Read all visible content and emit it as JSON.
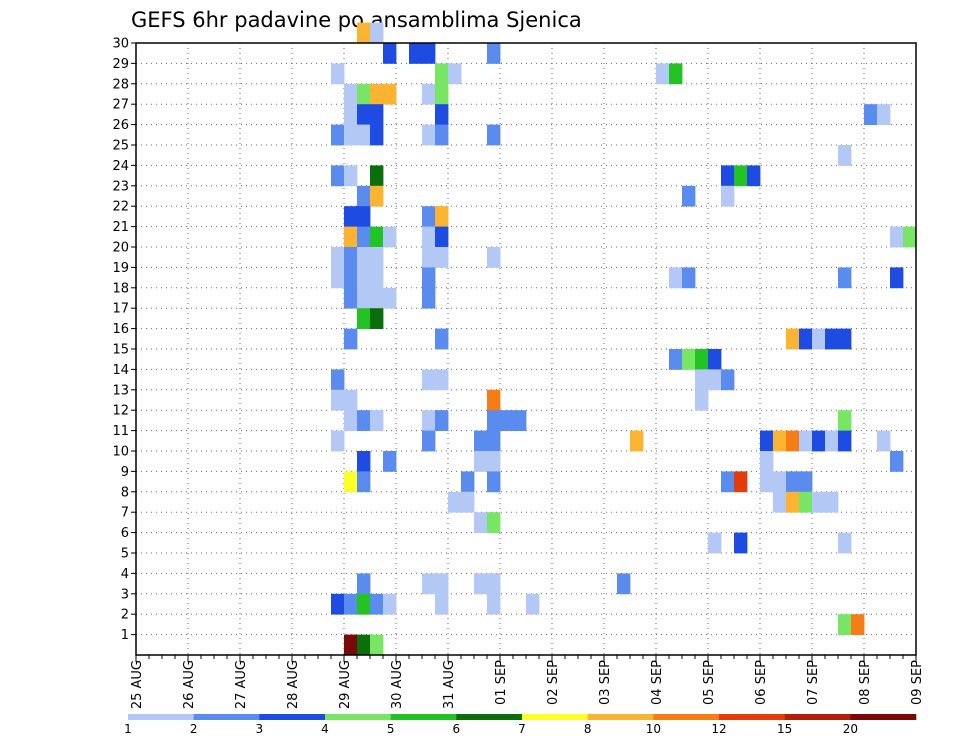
{
  "chart_data": {
    "type": "heatmap",
    "title": "GEFS 6hr padavine po ansamblima Sjenica",
    "x_labels": [
      "25 AUG",
      "26 AUG",
      "27 AUG",
      "28 AUG",
      "29 AUG",
      "30 AUG",
      "31 AUG",
      "01 SEP",
      "02 SEP",
      "03 SEP",
      "04 SEP",
      "05 SEP",
      "06 SEP",
      "07 SEP",
      "08 SEP",
      "09 SEP"
    ],
    "y_labels": [
      "1",
      "2",
      "3",
      "4",
      "5",
      "6",
      "7",
      "8",
      "9",
      "10",
      "11",
      "12",
      "13",
      "14",
      "15",
      "16",
      "17",
      "18",
      "19",
      "20",
      "21",
      "22",
      "23",
      "24",
      "25",
      "26",
      "27",
      "28",
      "29",
      "30"
    ],
    "x_step_hours": 6,
    "ylim": [
      0,
      30
    ],
    "grid": true,
    "colorbar": {
      "labels": [
        "1",
        "2",
        "3",
        "4",
        "5",
        "6",
        "7",
        "8",
        "10",
        "12",
        "15",
        "20"
      ],
      "colors": [
        "#b4c8f5",
        "#5a8cf0",
        "#1e4be1",
        "#78e664",
        "#23c323",
        "#0a6e0a",
        "#ffff28",
        "#fab432",
        "#f57d14",
        "#e13c0a",
        "#b41e0a",
        "#780a0a"
      ]
    },
    "cells": [
      {
        "t": 17,
        "m": 30,
        "c": 7
      },
      {
        "t": 18,
        "m": 30,
        "c": 0
      },
      {
        "t": 19,
        "m": 29,
        "c": 2
      },
      {
        "t": 21,
        "m": 29,
        "c": 2
      },
      {
        "t": 22,
        "m": 29,
        "c": 2
      },
      {
        "t": 27,
        "m": 29,
        "c": 1
      },
      {
        "t": 15,
        "m": 28,
        "c": 0
      },
      {
        "t": 23,
        "m": 28,
        "c": 3
      },
      {
        "t": 24,
        "m": 28,
        "c": 0
      },
      {
        "t": 40,
        "m": 28,
        "c": 0
      },
      {
        "t": 41,
        "m": 28,
        "c": 4
      },
      {
        "t": 16,
        "m": 27,
        "c": 0
      },
      {
        "t": 17,
        "m": 27,
        "c": 3
      },
      {
        "t": 18,
        "m": 27,
        "c": 7
      },
      {
        "t": 19,
        "m": 27,
        "c": 7
      },
      {
        "t": 22,
        "m": 27,
        "c": 0
      },
      {
        "t": 23,
        "m": 27,
        "c": 3
      },
      {
        "t": 16,
        "m": 26,
        "c": 0
      },
      {
        "t": 17,
        "m": 26,
        "c": 2
      },
      {
        "t": 18,
        "m": 26,
        "c": 2
      },
      {
        "t": 23,
        "m": 26,
        "c": 2
      },
      {
        "t": 56,
        "m": 26,
        "c": 1
      },
      {
        "t": 57,
        "m": 26,
        "c": 0
      },
      {
        "t": 15,
        "m": 25,
        "c": 1
      },
      {
        "t": 16,
        "m": 25,
        "c": 0
      },
      {
        "t": 17,
        "m": 25,
        "c": 0
      },
      {
        "t": 18,
        "m": 25,
        "c": 2
      },
      {
        "t": 22,
        "m": 25,
        "c": 0
      },
      {
        "t": 23,
        "m": 25,
        "c": 1
      },
      {
        "t": 27,
        "m": 25,
        "c": 1
      },
      {
        "t": 54,
        "m": 24,
        "c": 0
      },
      {
        "t": 15,
        "m": 23,
        "c": 1
      },
      {
        "t": 16,
        "m": 23,
        "c": 0
      },
      {
        "t": 18,
        "m": 23,
        "c": 5
      },
      {
        "t": 45,
        "m": 23,
        "c": 2
      },
      {
        "t": 46,
        "m": 23,
        "c": 4
      },
      {
        "t": 47,
        "m": 23,
        "c": 2
      },
      {
        "t": 17,
        "m": 22,
        "c": 1
      },
      {
        "t": 18,
        "m": 22,
        "c": 7
      },
      {
        "t": 42,
        "m": 22,
        "c": 1
      },
      {
        "t": 45,
        "m": 22,
        "c": 0
      },
      {
        "t": 16,
        "m": 21,
        "c": 2
      },
      {
        "t": 17,
        "m": 21,
        "c": 2
      },
      {
        "t": 22,
        "m": 21,
        "c": 1
      },
      {
        "t": 23,
        "m": 21,
        "c": 7
      },
      {
        "t": 16,
        "m": 20,
        "c": 7
      },
      {
        "t": 17,
        "m": 20,
        "c": 1
      },
      {
        "t": 18,
        "m": 20,
        "c": 4
      },
      {
        "t": 19,
        "m": 20,
        "c": 0
      },
      {
        "t": 22,
        "m": 20,
        "c": 0
      },
      {
        "t": 23,
        "m": 20,
        "c": 2
      },
      {
        "t": 58,
        "m": 20,
        "c": 0
      },
      {
        "t": 59,
        "m": 20,
        "c": 3
      },
      {
        "t": 15,
        "m": 19,
        "c": 0
      },
      {
        "t": 16,
        "m": 19,
        "c": 1
      },
      {
        "t": 17,
        "m": 19,
        "c": 0
      },
      {
        "t": 18,
        "m": 19,
        "c": 0
      },
      {
        "t": 22,
        "m": 19,
        "c": 0
      },
      {
        "t": 23,
        "m": 19,
        "c": 0
      },
      {
        "t": 27,
        "m": 19,
        "c": 0
      },
      {
        "t": 15,
        "m": 18,
        "c": 0
      },
      {
        "t": 16,
        "m": 18,
        "c": 1
      },
      {
        "t": 17,
        "m": 18,
        "c": 0
      },
      {
        "t": 18,
        "m": 18,
        "c": 0
      },
      {
        "t": 22,
        "m": 18,
        "c": 1
      },
      {
        "t": 41,
        "m": 18,
        "c": 0
      },
      {
        "t": 42,
        "m": 18,
        "c": 1
      },
      {
        "t": 54,
        "m": 18,
        "c": 1
      },
      {
        "t": 58,
        "m": 18,
        "c": 2
      },
      {
        "t": 16,
        "m": 17,
        "c": 1
      },
      {
        "t": 17,
        "m": 17,
        "c": 0
      },
      {
        "t": 18,
        "m": 17,
        "c": 0
      },
      {
        "t": 19,
        "m": 17,
        "c": 0
      },
      {
        "t": 22,
        "m": 17,
        "c": 1
      },
      {
        "t": 17,
        "m": 16,
        "c": 4
      },
      {
        "t": 18,
        "m": 16,
        "c": 5
      },
      {
        "t": 16,
        "m": 15,
        "c": 1
      },
      {
        "t": 23,
        "m": 15,
        "c": 1
      },
      {
        "t": 50,
        "m": 15,
        "c": 7
      },
      {
        "t": 51,
        "m": 15,
        "c": 2
      },
      {
        "t": 52,
        "m": 15,
        "c": 0
      },
      {
        "t": 53,
        "m": 15,
        "c": 2
      },
      {
        "t": 54,
        "m": 15,
        "c": 2
      },
      {
        "t": 41,
        "m": 14,
        "c": 1
      },
      {
        "t": 42,
        "m": 14,
        "c": 3
      },
      {
        "t": 43,
        "m": 14,
        "c": 4
      },
      {
        "t": 44,
        "m": 14,
        "c": 2
      },
      {
        "t": 15,
        "m": 13,
        "c": 1
      },
      {
        "t": 22,
        "m": 13,
        "c": 0
      },
      {
        "t": 23,
        "m": 13,
        "c": 0
      },
      {
        "t": 43,
        "m": 13,
        "c": 0
      },
      {
        "t": 44,
        "m": 13,
        "c": 0
      },
      {
        "t": 45,
        "m": 13,
        "c": 1
      },
      {
        "t": 15,
        "m": 12,
        "c": 0
      },
      {
        "t": 16,
        "m": 12,
        "c": 0
      },
      {
        "t": 27,
        "m": 12,
        "c": 8
      },
      {
        "t": 43,
        "m": 12,
        "c": 0
      },
      {
        "t": 16,
        "m": 11,
        "c": 0
      },
      {
        "t": 17,
        "m": 11,
        "c": 1
      },
      {
        "t": 18,
        "m": 11,
        "c": 0
      },
      {
        "t": 22,
        "m": 11,
        "c": 0
      },
      {
        "t": 23,
        "m": 11,
        "c": 1
      },
      {
        "t": 27,
        "m": 11,
        "c": 1
      },
      {
        "t": 28,
        "m": 11,
        "c": 1
      },
      {
        "t": 29,
        "m": 11,
        "c": 1
      },
      {
        "t": 54,
        "m": 11,
        "c": 3
      },
      {
        "t": 15,
        "m": 10,
        "c": 0
      },
      {
        "t": 22,
        "m": 10,
        "c": 1
      },
      {
        "t": 26,
        "m": 10,
        "c": 1
      },
      {
        "t": 27,
        "m": 10,
        "c": 1
      },
      {
        "t": 38,
        "m": 10,
        "c": 7
      },
      {
        "t": 48,
        "m": 10,
        "c": 2
      },
      {
        "t": 49,
        "m": 10,
        "c": 7
      },
      {
        "t": 50,
        "m": 10,
        "c": 8
      },
      {
        "t": 51,
        "m": 10,
        "c": 0
      },
      {
        "t": 52,
        "m": 10,
        "c": 2
      },
      {
        "t": 53,
        "m": 10,
        "c": 0
      },
      {
        "t": 54,
        "m": 10,
        "c": 2
      },
      {
        "t": 57,
        "m": 10,
        "c": 0
      },
      {
        "t": 17,
        "m": 9,
        "c": 2
      },
      {
        "t": 19,
        "m": 9,
        "c": 1
      },
      {
        "t": 26,
        "m": 9,
        "c": 0
      },
      {
        "t": 27,
        "m": 9,
        "c": 0
      },
      {
        "t": 48,
        "m": 9,
        "c": 0
      },
      {
        "t": 58,
        "m": 9,
        "c": 1
      },
      {
        "t": 16,
        "m": 8,
        "c": 6
      },
      {
        "t": 17,
        "m": 8,
        "c": 1
      },
      {
        "t": 25,
        "m": 8,
        "c": 1
      },
      {
        "t": 27,
        "m": 8,
        "c": 1
      },
      {
        "t": 45,
        "m": 8,
        "c": 1
      },
      {
        "t": 46,
        "m": 8,
        "c": 9
      },
      {
        "t": 48,
        "m": 8,
        "c": 0
      },
      {
        "t": 49,
        "m": 8,
        "c": 0
      },
      {
        "t": 50,
        "m": 8,
        "c": 1
      },
      {
        "t": 51,
        "m": 8,
        "c": 1
      },
      {
        "t": 24,
        "m": 7,
        "c": 0
      },
      {
        "t": 25,
        "m": 7,
        "c": 0
      },
      {
        "t": 49,
        "m": 7,
        "c": 0
      },
      {
        "t": 50,
        "m": 7,
        "c": 7
      },
      {
        "t": 51,
        "m": 7,
        "c": 3
      },
      {
        "t": 52,
        "m": 7,
        "c": 0
      },
      {
        "t": 53,
        "m": 7,
        "c": 0
      },
      {
        "t": 26,
        "m": 6,
        "c": 0
      },
      {
        "t": 27,
        "m": 6,
        "c": 3
      },
      {
        "t": 44,
        "m": 5,
        "c": 0
      },
      {
        "t": 46,
        "m": 5,
        "c": 2
      },
      {
        "t": 54,
        "m": 5,
        "c": 0
      },
      {
        "t": 17,
        "m": 3,
        "c": 1
      },
      {
        "t": 22,
        "m": 3,
        "c": 0
      },
      {
        "t": 23,
        "m": 3,
        "c": 0
      },
      {
        "t": 26,
        "m": 3,
        "c": 0
      },
      {
        "t": 27,
        "m": 3,
        "c": 0
      },
      {
        "t": 37,
        "m": 3,
        "c": 1
      },
      {
        "t": 15,
        "m": 2,
        "c": 2
      },
      {
        "t": 16,
        "m": 2,
        "c": 1
      },
      {
        "t": 17,
        "m": 2,
        "c": 4
      },
      {
        "t": 18,
        "m": 2,
        "c": 1
      },
      {
        "t": 19,
        "m": 2,
        "c": 0
      },
      {
        "t": 23,
        "m": 2,
        "c": 0
      },
      {
        "t": 27,
        "m": 2,
        "c": 0
      },
      {
        "t": 30,
        "m": 2,
        "c": 0
      },
      {
        "t": 54,
        "m": 1,
        "c": 3
      },
      {
        "t": 55,
        "m": 1,
        "c": 8
      },
      {
        "t": 16,
        "m": 0,
        "c": 11
      },
      {
        "t": 17,
        "m": 0,
        "c": 5
      },
      {
        "t": 18,
        "m": 0,
        "c": 3
      }
    ]
  }
}
